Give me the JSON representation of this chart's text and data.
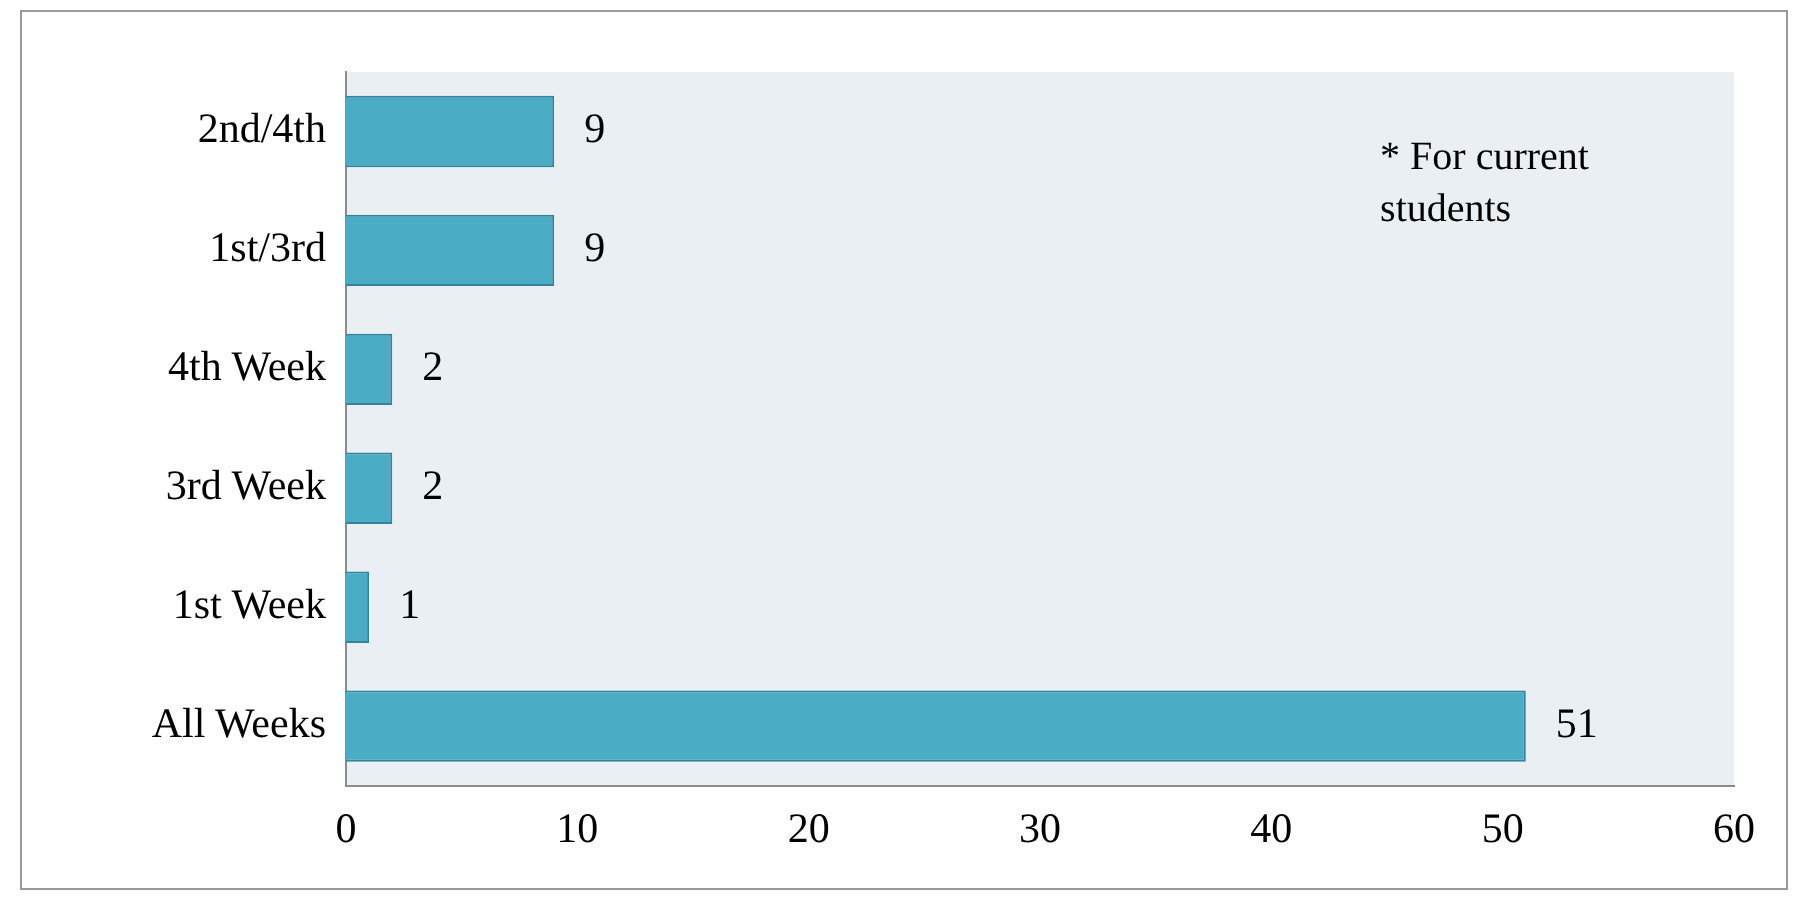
{
  "chart_data": {
    "type": "bar",
    "orientation": "horizontal",
    "categories": [
      "2nd/4th",
      "1st/3rd",
      "4th Week",
      "3rd Week",
      "1st Week",
      "All Weeks"
    ],
    "values": [
      9,
      9,
      2,
      2,
      1,
      51
    ],
    "color": "#4bacc6",
    "xlim": [
      0,
      60
    ],
    "xticks": [
      0,
      10,
      20,
      30,
      40,
      50,
      60
    ],
    "data_labels": true,
    "grid": false,
    "legend": false,
    "annotations": [
      "* For current students"
    ]
  }
}
